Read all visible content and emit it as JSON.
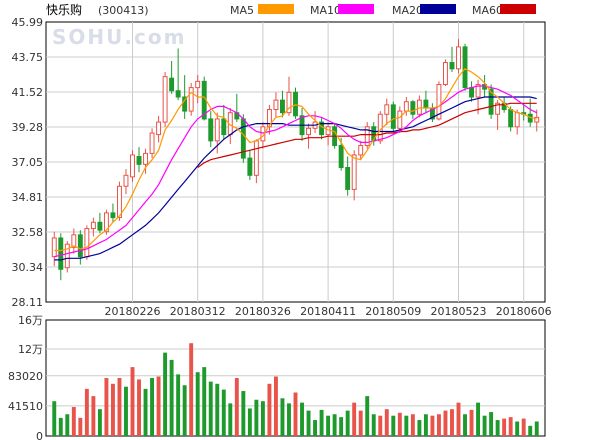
{
  "chart_data": {
    "type": "candlestick",
    "title": "快乐购",
    "code": "(300413)",
    "watermark": "SOHU.com",
    "colors": {
      "up": "#e8534a",
      "down": "#1e9a2c",
      "ma5": "#ff9900",
      "ma10": "#ff00ff",
      "ma20": "#000099",
      "ma60": "#cc0000",
      "grid": "#cccccc",
      "axis": "#000000"
    },
    "legend": [
      {
        "name": "MA5",
        "color": "#ff9900"
      },
      {
        "name": "MA10",
        "color": "#ff00ff"
      },
      {
        "name": "MA20",
        "color": "#000099"
      },
      {
        "name": "MA60",
        "color": "#cc0000"
      }
    ],
    "price_axis": {
      "min": 28.11,
      "max": 45.99,
      "ticks": [
        "45.99",
        "43.75",
        "41.52",
        "39.28",
        "37.05",
        "34.81",
        "32.58",
        "30.34",
        "28.11"
      ]
    },
    "volume_axis": {
      "min": 0,
      "max": 160000,
      "tick_labels": [
        "16万",
        "12万",
        "83020",
        "41510",
        "0"
      ],
      "tick_values": [
        160000,
        120000,
        83020,
        41510,
        0
      ]
    },
    "x_labels": [
      {
        "label": "20180226",
        "index": 12
      },
      {
        "label": "20180312",
        "index": 22
      },
      {
        "label": "20180326",
        "index": 32
      },
      {
        "label": "20180411",
        "index": 42
      },
      {
        "label": "20180509",
        "index": 52
      },
      {
        "label": "20180523",
        "index": 62
      },
      {
        "label": "20180606",
        "index": 72
      }
    ],
    "ohlc": [
      [
        31.0,
        32.6,
        30.4,
        32.2
      ],
      [
        32.2,
        32.5,
        29.5,
        30.2
      ],
      [
        30.3,
        32.0,
        30.0,
        31.8
      ],
      [
        31.6,
        32.8,
        31.2,
        32.4
      ],
      [
        32.4,
        32.7,
        30.5,
        31.0
      ],
      [
        31.0,
        33.0,
        30.8,
        32.8
      ],
      [
        32.8,
        33.5,
        32.3,
        33.2
      ],
      [
        33.2,
        33.8,
        32.5,
        32.7
      ],
      [
        32.6,
        34.0,
        32.4,
        33.8
      ],
      [
        33.8,
        34.4,
        33.2,
        33.5
      ],
      [
        33.5,
        35.8,
        33.3,
        35.5
      ],
      [
        35.5,
        36.6,
        35.0,
        36.2
      ],
      [
        36.1,
        37.8,
        35.8,
        37.5
      ],
      [
        37.4,
        38.0,
        36.4,
        36.9
      ],
      [
        36.9,
        37.9,
        36.3,
        37.6
      ],
      [
        37.6,
        39.2,
        37.3,
        38.9
      ],
      [
        38.8,
        40.0,
        38.3,
        39.6
      ],
      [
        39.6,
        42.8,
        39.3,
        42.5
      ],
      [
        42.4,
        43.5,
        41.4,
        41.6
      ],
      [
        41.6,
        44.3,
        41.0,
        41.2
      ],
      [
        41.2,
        42.6,
        39.8,
        40.3
      ],
      [
        40.3,
        42.1,
        40.0,
        41.8
      ],
      [
        41.8,
        42.6,
        40.8,
        42.2
      ],
      [
        42.2,
        42.5,
        39.7,
        39.8
      ],
      [
        39.8,
        40.3,
        38.0,
        38.4
      ],
      [
        38.4,
        40.2,
        37.6,
        39.8
      ],
      [
        39.8,
        40.7,
        38.5,
        38.8
      ],
      [
        38.8,
        40.5,
        38.2,
        40.2
      ],
      [
        40.2,
        41.4,
        39.6,
        39.8
      ],
      [
        39.8,
        40.1,
        37.0,
        37.3
      ],
      [
        37.3,
        37.8,
        35.9,
        36.2
      ],
      [
        36.2,
        38.5,
        35.7,
        38.4
      ],
      [
        38.4,
        39.6,
        37.9,
        39.3
      ],
      [
        39.3,
        40.7,
        38.8,
        40.4
      ],
      [
        40.4,
        41.5,
        39.9,
        41.0
      ],
      [
        41.0,
        41.6,
        39.9,
        40.2
      ],
      [
        40.2,
        42.5,
        40.0,
        41.5
      ],
      [
        41.5,
        41.8,
        39.8,
        40.0
      ],
      [
        40.0,
        40.5,
        38.4,
        38.8
      ],
      [
        38.8,
        39.5,
        37.9,
        39.2
      ],
      [
        39.2,
        40.3,
        38.9,
        39.6
      ],
      [
        39.6,
        39.9,
        38.5,
        38.8
      ],
      [
        38.8,
        39.6,
        38.1,
        39.3
      ],
      [
        39.3,
        39.5,
        37.9,
        38.1
      ],
      [
        38.1,
        38.6,
        36.5,
        36.7
      ],
      [
        36.7,
        37.4,
        34.9,
        35.3
      ],
      [
        35.3,
        37.8,
        34.6,
        37.5
      ],
      [
        37.5,
        38.4,
        37.2,
        38.1
      ],
      [
        38.1,
        39.6,
        37.9,
        39.3
      ],
      [
        39.3,
        39.6,
        38.1,
        38.4
      ],
      [
        38.4,
        40.3,
        38.2,
        40.1
      ],
      [
        40.1,
        41.1,
        39.4,
        40.7
      ],
      [
        40.7,
        40.9,
        39.0,
        39.2
      ],
      [
        39.2,
        40.6,
        38.9,
        40.3
      ],
      [
        40.3,
        41.2,
        40.0,
        40.9
      ],
      [
        40.9,
        41.0,
        39.8,
        40.1
      ],
      [
        40.1,
        41.3,
        39.9,
        41.0
      ],
      [
        41.0,
        41.6,
        40.2,
        40.5
      ],
      [
        40.5,
        40.8,
        39.6,
        39.8
      ],
      [
        39.8,
        42.2,
        39.7,
        42.0
      ],
      [
        42.0,
        43.6,
        41.9,
        43.4
      ],
      [
        43.4,
        44.4,
        42.8,
        43.0
      ],
      [
        43.0,
        44.9,
        42.7,
        44.4
      ],
      [
        44.4,
        44.6,
        41.6,
        41.8
      ],
      [
        41.8,
        42.2,
        40.9,
        41.2
      ],
      [
        41.2,
        42.3,
        40.1,
        42.0
      ],
      [
        42.0,
        42.6,
        41.2,
        41.7
      ],
      [
        41.7,
        42.0,
        39.8,
        40.1
      ],
      [
        40.1,
        41.0,
        39.1,
        40.8
      ],
      [
        40.8,
        41.2,
        40.2,
        40.4
      ],
      [
        40.4,
        40.6,
        39.0,
        39.3
      ],
      [
        39.3,
        40.4,
        38.8,
        40.2
      ],
      [
        40.2,
        40.8,
        39.7,
        40.1
      ],
      [
        40.1,
        41.1,
        39.3,
        39.6
      ],
      [
        39.6,
        40.4,
        39.0,
        39.9
      ]
    ],
    "volume": [
      [
        48000,
        "down"
      ],
      [
        25000,
        "down"
      ],
      [
        30000,
        "down"
      ],
      [
        40000,
        "up"
      ],
      [
        25000,
        "up"
      ],
      [
        65000,
        "up"
      ],
      [
        55000,
        "up"
      ],
      [
        37000,
        "down"
      ],
      [
        80000,
        "up"
      ],
      [
        72000,
        "up"
      ],
      [
        80000,
        "up"
      ],
      [
        68000,
        "down"
      ],
      [
        95000,
        "up"
      ],
      [
        78000,
        "up"
      ],
      [
        65000,
        "down"
      ],
      [
        80000,
        "down"
      ],
      [
        82000,
        "up"
      ],
      [
        115000,
        "down"
      ],
      [
        105000,
        "down"
      ],
      [
        85000,
        "down"
      ],
      [
        70000,
        "down"
      ],
      [
        128000,
        "up"
      ],
      [
        88000,
        "down"
      ],
      [
        95000,
        "down"
      ],
      [
        75000,
        "down"
      ],
      [
        72000,
        "down"
      ],
      [
        64000,
        "down"
      ],
      [
        45000,
        "down"
      ],
      [
        80000,
        "up"
      ],
      [
        62000,
        "down"
      ],
      [
        38000,
        "down"
      ],
      [
        50000,
        "down"
      ],
      [
        48000,
        "down"
      ],
      [
        72000,
        "up"
      ],
      [
        82000,
        "up"
      ],
      [
        52000,
        "down"
      ],
      [
        45000,
        "down"
      ],
      [
        60000,
        "up"
      ],
      [
        46000,
        "down"
      ],
      [
        35000,
        "down"
      ],
      [
        22000,
        "down"
      ],
      [
        36000,
        "down"
      ],
      [
        28000,
        "down"
      ],
      [
        30000,
        "down"
      ],
      [
        26000,
        "down"
      ],
      [
        35000,
        "down"
      ],
      [
        46000,
        "up"
      ],
      [
        35000,
        "up"
      ],
      [
        55000,
        "down"
      ],
      [
        30000,
        "down"
      ],
      [
        28000,
        "up"
      ],
      [
        37000,
        "up"
      ],
      [
        28000,
        "down"
      ],
      [
        32000,
        "up"
      ],
      [
        28000,
        "down"
      ],
      [
        30000,
        "up"
      ],
      [
        22000,
        "down"
      ],
      [
        30000,
        "down"
      ],
      [
        28000,
        "up"
      ],
      [
        30000,
        "up"
      ],
      [
        35000,
        "up"
      ],
      [
        37000,
        "up"
      ],
      [
        46000,
        "up"
      ],
      [
        30000,
        "down"
      ],
      [
        36000,
        "up"
      ],
      [
        46000,
        "down"
      ],
      [
        28000,
        "down"
      ],
      [
        33000,
        "down"
      ],
      [
        22000,
        "down"
      ],
      [
        24000,
        "up"
      ],
      [
        26000,
        "up"
      ],
      [
        20000,
        "down"
      ],
      [
        24000,
        "up"
      ],
      [
        14000,
        "down"
      ],
      [
        20000,
        "down"
      ]
    ],
    "ma5": [
      31.4,
      31.4,
      31.5,
      31.7,
      31.5,
      31.6,
      32.0,
      32.4,
      32.7,
      33.2,
      33.6,
      34.2,
      35.0,
      35.9,
      36.7,
      37.2,
      37.8,
      39.1,
      39.7,
      40.4,
      41.0,
      41.5,
      41.2,
      41.2,
      40.5,
      40.0,
      39.9,
      39.4,
      39.2,
      38.8,
      38.3,
      38.4,
      38.7,
      39.4,
      39.9,
      40.0,
      40.5,
      40.7,
      40.6,
      40.1,
      39.7,
      39.3,
      39.1,
      39.0,
      38.3,
      37.6,
      37.3,
      37.2,
      37.8,
      38.5,
      39.1,
      39.5,
      39.8,
      39.9,
      40.3,
      40.3,
      40.5,
      40.5,
      40.5,
      40.6,
      41.1,
      41.8,
      42.5,
      43.0,
      42.8,
      42.5,
      42.1,
      41.5,
      41.2,
      40.8,
      40.4,
      40.2,
      40.1,
      39.9,
      39.8
    ],
    "ma10": [
      31.0,
      31.1,
      31.2,
      31.3,
      31.4,
      31.5,
      31.7,
      31.9,
      32.1,
      32.4,
      32.7,
      33.0,
      33.5,
      34.0,
      34.5,
      35.0,
      35.6,
      36.4,
      37.2,
      37.9,
      38.6,
      39.3,
      39.8,
      40.1,
      40.4,
      40.6,
      40.6,
      40.4,
      40.2,
      39.8,
      39.3,
      39.0,
      38.9,
      39.0,
      39.1,
      39.3,
      39.5,
      39.7,
      39.9,
      40.0,
      40.0,
      39.9,
      39.7,
      39.5,
      39.2,
      38.8,
      38.5,
      38.3,
      38.3,
      38.4,
      38.5,
      38.6,
      38.8,
      39.0,
      39.3,
      39.7,
      40.0,
      40.2,
      40.4,
      40.6,
      40.9,
      41.2,
      41.5,
      41.7,
      41.8,
      41.9,
      41.9,
      41.8,
      41.7,
      41.5,
      41.3,
      41.0,
      40.7,
      40.4,
      40.2
    ],
    "ma20": [
      30.8,
      30.8,
      30.9,
      30.9,
      30.9,
      31.0,
      31.1,
      31.2,
      31.4,
      31.6,
      31.8,
      32.1,
      32.4,
      32.7,
      33.0,
      33.4,
      33.8,
      34.3,
      34.8,
      35.3,
      35.8,
      36.3,
      36.8,
      37.3,
      37.7,
      38.1,
      38.5,
      38.8,
      39.1,
      39.3,
      39.4,
      39.5,
      39.5,
      39.5,
      39.5,
      39.5,
      39.4,
      39.4,
      39.4,
      39.4,
      39.4,
      39.5,
      39.5,
      39.5,
      39.4,
      39.3,
      39.2,
      39.1,
      39.1,
      39.0,
      39.0,
      39.0,
      39.0,
      39.1,
      39.2,
      39.3,
      39.5,
      39.7,
      39.9,
      40.1,
      40.3,
      40.5,
      40.7,
      40.9,
      41.0,
      41.1,
      41.2,
      41.2,
      41.2,
      41.2,
      41.2,
      41.2,
      41.2,
      41.2,
      41.1
    ],
    "ma60": [
      null,
      null,
      null,
      null,
      null,
      null,
      null,
      null,
      null,
      null,
      null,
      null,
      null,
      null,
      null,
      null,
      null,
      null,
      null,
      null,
      null,
      null,
      36.7,
      37.0,
      37.2,
      37.3,
      37.4,
      37.5,
      37.6,
      37.7,
      37.8,
      37.9,
      38.0,
      38.1,
      38.2,
      38.3,
      38.4,
      38.5,
      38.5,
      38.6,
      38.6,
      38.6,
      38.7,
      38.7,
      38.7,
      38.7,
      38.7,
      38.8,
      38.8,
      38.8,
      38.8,
      38.9,
      38.9,
      39.0,
      39.0,
      39.1,
      39.1,
      39.2,
      39.3,
      39.4,
      39.6,
      39.8,
      40.0,
      40.2,
      40.3,
      40.4,
      40.5,
      40.6,
      40.7,
      40.7,
      40.8,
      40.8,
      40.8,
      40.8,
      40.8
    ]
  }
}
